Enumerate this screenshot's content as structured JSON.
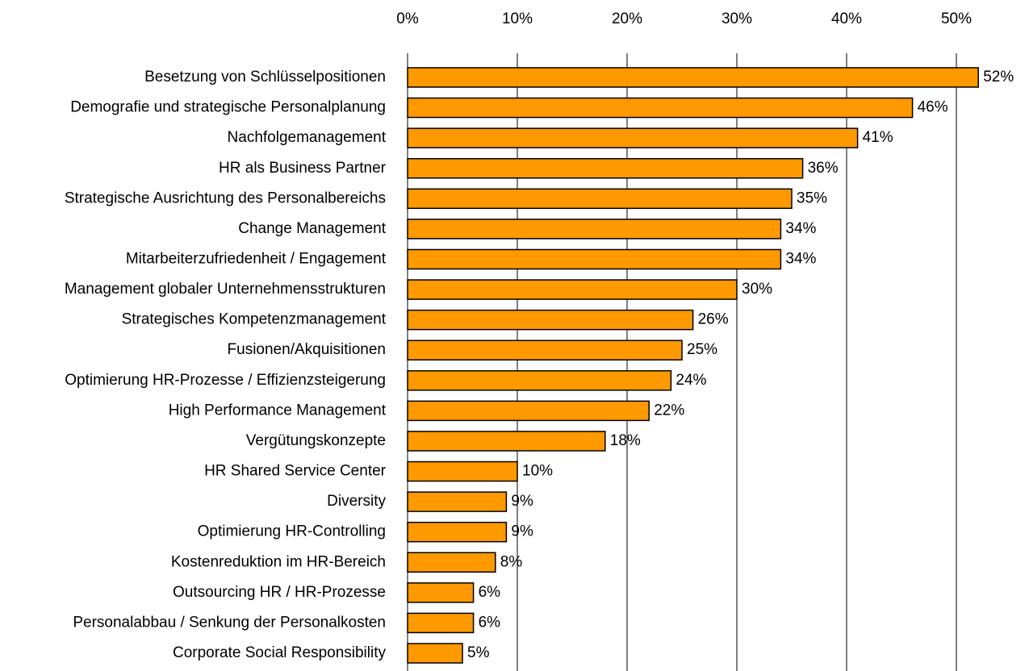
{
  "chart_data": {
    "type": "bar",
    "orientation": "horizontal",
    "categories": [
      "Besetzung von Schlüsselpositionen",
      "Demografie und strategische Personalplanung",
      "Nachfolgemanagement",
      "HR als Business Partner",
      "Strategische Ausrichtung des Personalbereichs",
      "Change Management",
      "Mitarbeiterzufriedenheit / Engagement",
      "Management globaler Unternehmensstrukturen",
      "Strategisches Kompetenzmanagement",
      "Fusionen/Akquisitionen",
      "Optimierung HR-Prozesse / Effizienzsteigerung",
      "High Performance Management",
      "Vergütungskonzepte",
      "HR Shared Service Center",
      "Diversity",
      "Optimierung HR-Controlling",
      "Kostenreduktion im HR-Bereich",
      "Outsourcing HR / HR-Prozesse",
      "Personalabbau / Senkung der Personalkosten",
      "Corporate Social Responsibility"
    ],
    "values": [
      52,
      46,
      41,
      36,
      35,
      34,
      34,
      30,
      26,
      25,
      24,
      22,
      18,
      10,
      9,
      9,
      8,
      6,
      6,
      5
    ],
    "value_labels": [
      "52%",
      "46%",
      "41%",
      "36%",
      "35%",
      "34%",
      "34%",
      "30%",
      "26%",
      "25%",
      "24%",
      "22%",
      "18%",
      "10%",
      "9%",
      "9%",
      "8%",
      "6%",
      "6%",
      "5%"
    ],
    "color": "#ff9900",
    "xlim": [
      0,
      55
    ],
    "xticks": [
      {
        "value": 0,
        "label": "0%"
      },
      {
        "value": 10,
        "label": "10%"
      },
      {
        "value": 20,
        "label": "20%"
      },
      {
        "value": 30,
        "label": "30%"
      },
      {
        "value": 40,
        "label": "40%"
      },
      {
        "value": 50,
        "label": "50%"
      }
    ],
    "grid": true
  }
}
